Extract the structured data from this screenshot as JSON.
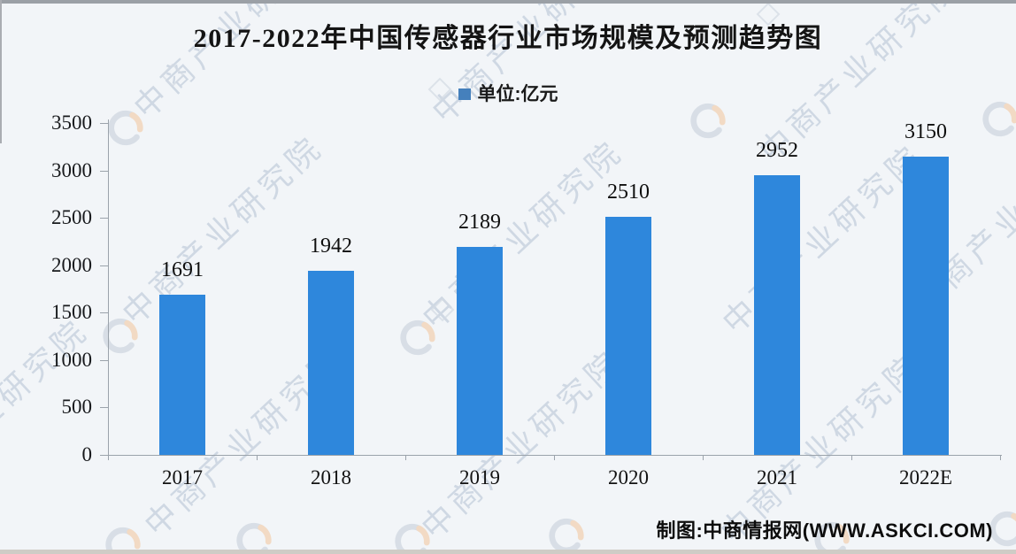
{
  "title": "2017-2022年中国传感器行业市场规模及预测趋势图",
  "legend": {
    "label": "单位:亿元"
  },
  "chart_data": {
    "type": "bar",
    "title": "2017-2022年中国传感器行业市场规模及预测趋势图",
    "unit_label": "单位:亿元",
    "categories": [
      "2017",
      "2018",
      "2019",
      "2020",
      "2021",
      "2022E"
    ],
    "values": [
      1691,
      1942,
      2189,
      2510,
      2952,
      3150
    ],
    "xlabel": "",
    "ylabel": "",
    "ylim": [
      0,
      3500
    ],
    "yticks": [
      0,
      500,
      1000,
      1500,
      2000,
      2500,
      3000,
      3500
    ],
    "grid": false,
    "legend_position": "top-center",
    "bar_color": "#2e87dc",
    "value_labels_shown": true
  },
  "footer": {
    "credit": "制图:中商情报网(WWW.ASKCI.COM)"
  },
  "watermark": {
    "text": "中商产业研究院",
    "logo": "askci-swirl-logo"
  },
  "colors": {
    "background": "#f2f5f8",
    "bar": "#2e87dc",
    "legend_marker": "#4580bc",
    "axis": "#9ba3ab",
    "watermark_text": "#c9d3e0",
    "logo_ring": "#c3cdd9",
    "logo_accent": "#f2c49b"
  }
}
